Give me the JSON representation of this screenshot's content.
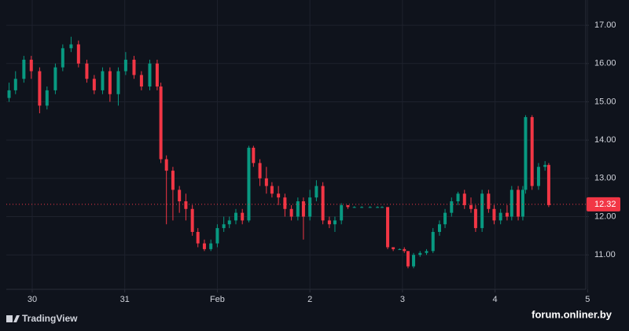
{
  "chart_data": {
    "type": "candlestick",
    "x": [
      -0.25,
      -0.18,
      -0.09,
      -0.01,
      0.08,
      0.16,
      0.25,
      0.33,
      0.42,
      0.5,
      0.59,
      0.67,
      0.76,
      0.84,
      0.93,
      1.01,
      1.1,
      1.18,
      1.27,
      1.35,
      1.39,
      1.45,
      1.52,
      1.59,
      1.66,
      1.73,
      1.79,
      1.86,
      1.93,
      2.0,
      2.07,
      2.13,
      2.2,
      2.27,
      2.34,
      2.39,
      2.46,
      2.53,
      2.59,
      2.66,
      2.73,
      2.8,
      2.87,
      2.93,
      3.0,
      3.07,
      3.14,
      3.21,
      3.27,
      3.34,
      3.41,
      3.48,
      3.56,
      3.65,
      3.73,
      3.78,
      3.84,
      3.9,
      3.97,
      4.02,
      4.06,
      4.12,
      4.19,
      4.26,
      4.33,
      4.4,
      4.46,
      4.53,
      4.6,
      4.67,
      4.74,
      4.79,
      4.86,
      4.93,
      4.99,
      5.06,
      5.13,
      5.18,
      5.25,
      5.3,
      5.33,
      5.4,
      5.47,
      5.54,
      5.58
    ],
    "open": [
      15.1,
      15.3,
      15.6,
      16.1,
      15.8,
      14.9,
      15.3,
      15.9,
      16.4,
      16.5,
      16.0,
      15.6,
      15.3,
      15.8,
      15.2,
      15.8,
      16.1,
      15.7,
      15.4,
      16.0,
      15.4,
      13.5,
      13.2,
      12.7,
      12.4,
      12.2,
      11.6,
      11.3,
      11.15,
      11.3,
      11.7,
      11.8,
      11.9,
      12.1,
      11.9,
      13.8,
      13.4,
      13.0,
      12.8,
      12.6,
      12.5,
      12.2,
      12.0,
      12.4,
      12.0,
      12.5,
      12.8,
      11.9,
      11.8,
      11.9,
      12.3,
      12.25,
      12.25,
      12.25,
      12.25,
      12.25,
      12.25,
      11.2,
      11.15,
      11.15,
      11.1,
      10.7,
      11.0,
      11.05,
      11.1,
      11.6,
      11.8,
      12.1,
      12.4,
      12.6,
      12.3,
      12.2,
      11.7,
      12.6,
      12.2,
      11.9,
      12.1,
      12.0,
      12.7,
      12.0,
      12.7,
      14.6,
      12.8,
      13.3,
      13.35
    ],
    "high": [
      15.5,
      15.8,
      16.2,
      16.2,
      15.9,
      15.4,
      16.0,
      16.5,
      16.7,
      16.6,
      16.1,
      15.7,
      15.9,
      15.9,
      15.9,
      16.3,
      16.2,
      15.8,
      16.1,
      16.1,
      15.5,
      13.6,
      13.3,
      12.8,
      12.6,
      12.3,
      11.7,
      11.4,
      11.4,
      11.8,
      12.0,
      12.0,
      12.2,
      12.2,
      13.85,
      13.85,
      13.5,
      13.3,
      12.9,
      12.8,
      12.6,
      12.3,
      12.5,
      12.5,
      12.7,
      12.95,
      12.9,
      12.0,
      12.0,
      12.35,
      12.3,
      12.27,
      12.27,
      12.27,
      12.27,
      12.27,
      12.25,
      11.2,
      11.17,
      11.2,
      11.1,
      11.05,
      11.1,
      11.15,
      11.7,
      11.9,
      12.2,
      12.5,
      12.65,
      12.7,
      12.5,
      12.3,
      12.7,
      12.7,
      12.3,
      12.2,
      12.3,
      12.8,
      12.8,
      12.8,
      14.65,
      14.65,
      13.4,
      13.45,
      13.4
    ],
    "low": [
      15.0,
      15.2,
      15.5,
      15.6,
      14.7,
      14.8,
      15.2,
      15.8,
      16.3,
      15.9,
      15.5,
      15.2,
      15.2,
      15.0,
      14.9,
      15.7,
      15.6,
      15.3,
      15.3,
      15.3,
      13.4,
      11.8,
      11.9,
      12.1,
      11.9,
      11.5,
      11.2,
      11.1,
      11.1,
      11.2,
      11.6,
      11.7,
      11.8,
      11.8,
      11.85,
      13.3,
      12.8,
      12.6,
      12.5,
      12.3,
      12.0,
      11.9,
      11.9,
      11.4,
      11.9,
      12.4,
      11.8,
      11.7,
      11.6,
      11.8,
      12.2,
      12.23,
      12.23,
      12.23,
      12.23,
      12.23,
      11.15,
      11.1,
      11.13,
      11.05,
      10.65,
      10.65,
      10.95,
      11.0,
      11.05,
      11.5,
      11.7,
      12.0,
      12.3,
      12.2,
      12.1,
      11.6,
      11.6,
      12.1,
      11.8,
      11.8,
      11.9,
      11.9,
      11.9,
      11.9,
      12.6,
      12.7,
      12.7,
      13.2,
      12.25
    ],
    "close": [
      15.3,
      15.6,
      16.1,
      15.8,
      14.9,
      15.3,
      15.9,
      16.4,
      16.5,
      16.0,
      15.6,
      15.3,
      15.8,
      15.2,
      15.8,
      16.1,
      15.7,
      15.4,
      16.0,
      15.4,
      13.5,
      13.2,
      12.7,
      12.4,
      12.2,
      11.6,
      11.3,
      11.15,
      11.3,
      11.7,
      11.8,
      11.9,
      12.1,
      11.9,
      13.8,
      13.4,
      13.0,
      12.8,
      12.6,
      12.5,
      12.2,
      12.0,
      12.4,
      12.0,
      12.5,
      12.8,
      11.9,
      11.8,
      11.9,
      12.3,
      12.25,
      12.25,
      12.25,
      12.25,
      12.25,
      12.25,
      11.2,
      11.15,
      11.15,
      11.1,
      10.7,
      11.0,
      11.05,
      11.1,
      11.6,
      11.8,
      12.1,
      12.4,
      12.6,
      12.3,
      12.2,
      11.7,
      12.6,
      12.2,
      11.9,
      12.1,
      12.0,
      12.7,
      12.0,
      12.7,
      14.6,
      12.8,
      13.3,
      13.35,
      12.3
    ],
    "up_color": "#089981",
    "down_color": "#f23645",
    "xlim": [
      -0.28,
      5.98
    ],
    "xticks": [
      {
        "value": 0,
        "label": "30"
      },
      {
        "value": 1,
        "label": "31"
      },
      {
        "value": 2,
        "label": "Feb"
      },
      {
        "value": 3,
        "label": "2"
      },
      {
        "value": 4,
        "label": "3"
      },
      {
        "value": 5,
        "label": "4"
      },
      {
        "value": 6,
        "label": "5"
      }
    ],
    "ylim": [
      10.1,
      17.66
    ],
    "yticks": [
      {
        "value": 11,
        "label": "11.00"
      },
      {
        "value": 12,
        "label": "12.00"
      },
      {
        "value": 13,
        "label": "13.00"
      },
      {
        "value": 14,
        "label": "14.00"
      },
      {
        "value": 15,
        "label": "15.00"
      },
      {
        "value": 16,
        "label": "16.00"
      },
      {
        "value": 17,
        "label": "17.00"
      }
    ],
    "grid": true,
    "last_price": 12.32,
    "brand": "TradingView",
    "watermark": "forum.onliner.by"
  }
}
